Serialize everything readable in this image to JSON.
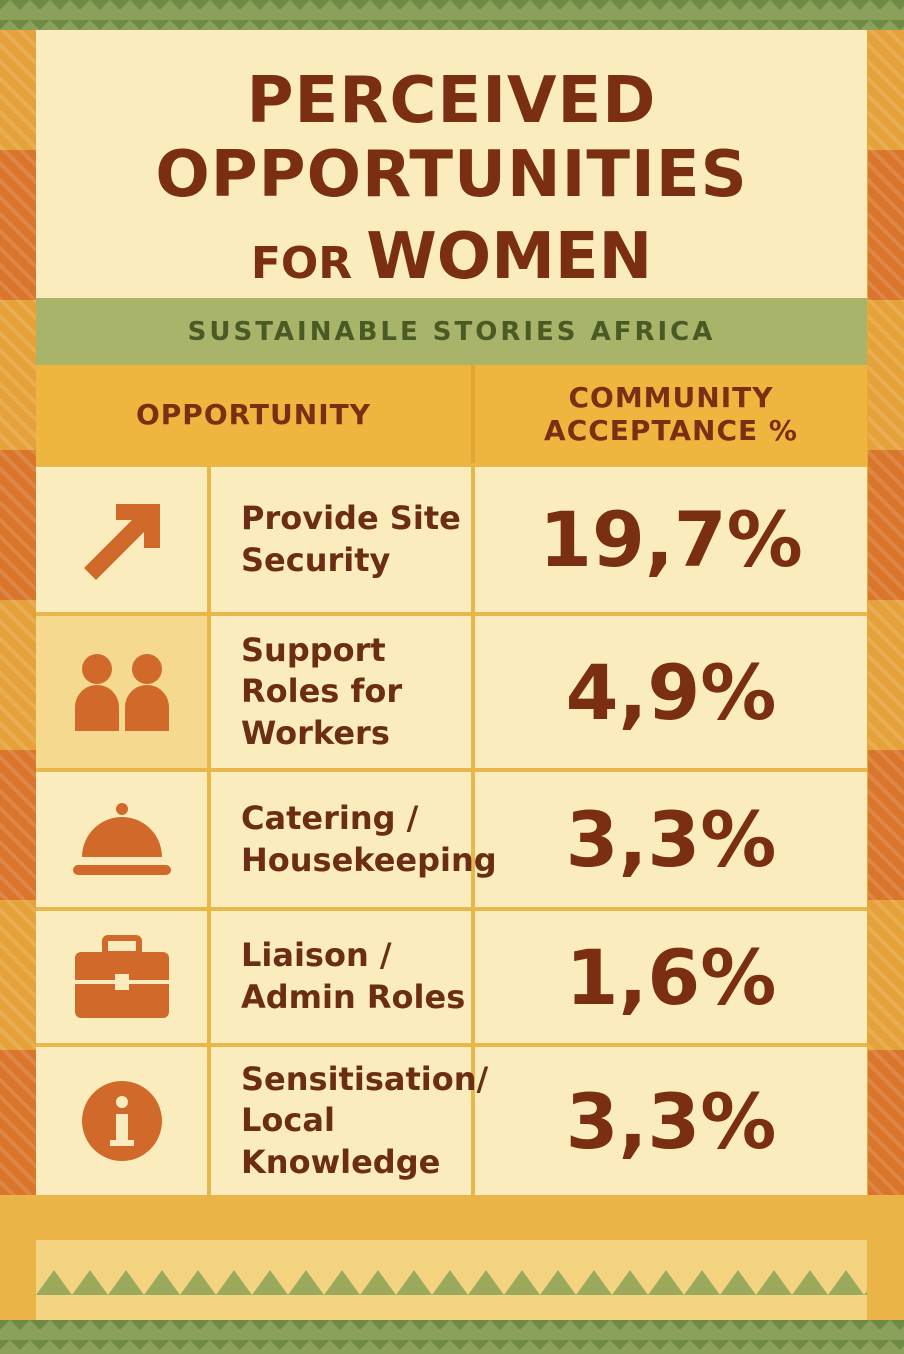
{
  "header": {
    "title": "PERCEIVED OPPORTUNITIES",
    "title_suffix": "FOR",
    "title_last": "WOMEN",
    "subtitle": "SUSTAINABLE STORIES AFRICA"
  },
  "table": {
    "headers": [
      "OPPORTUNITY",
      "COMMUNITY ACCEPTANCE %"
    ],
    "rows": [
      [
        "Provide Site Security",
        "19,7%"
      ],
      [
        "Support Roles for Workers",
        "4,9%"
      ],
      [
        "Catering / Housekeeping",
        "3,3%"
      ],
      [
        "Liaison / Admin Roles",
        "1,6%"
      ],
      [
        "Sensitisation/ Local Knowledge",
        "3,3%"
      ]
    ]
  }
}
